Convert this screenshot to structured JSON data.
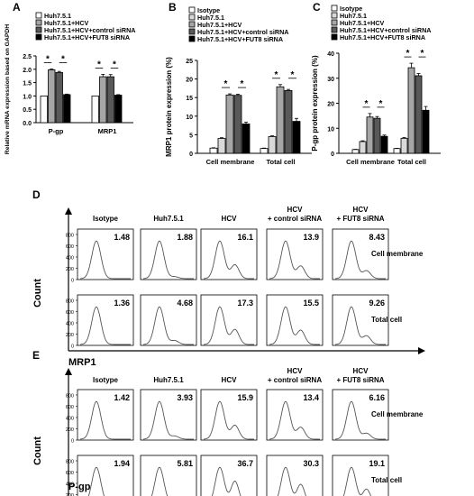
{
  "colors": {
    "white": "#ffffff",
    "light_gray": "#d9d9d9",
    "gray": "#a6a6a6",
    "dark_gray": "#595959",
    "black": "#000000",
    "curve": "#555555"
  },
  "chart_data": [
    {
      "panel": "A",
      "type": "bar",
      "title": "",
      "ylabel": "Relative mRNA expression based on GAPDH",
      "categories": [
        "P-gp",
        "MRP1"
      ],
      "ylim": [
        0,
        2.5
      ],
      "yticks": [
        "0.0",
        "0.5",
        "1.0",
        "1.5",
        "2.0",
        "2.5"
      ],
      "series": [
        {
          "name": "Huh7.5.1",
          "values": [
            1.0,
            1.0
          ],
          "errors": [
            0,
            0
          ],
          "color": "#ffffff"
        },
        {
          "name": "Huh7.5.1+HCV",
          "values": [
            1.98,
            1.72
          ],
          "errors": [
            0.03,
            0.09
          ],
          "color": "#a6a6a6"
        },
        {
          "name": "Huh7.5.1+HCV+control siRNA",
          "values": [
            1.88,
            1.72
          ],
          "errors": [
            0.04,
            0.08
          ],
          "color": "#595959"
        },
        {
          "name": "Huh7.5.1+HCV+FUT8 siRNA",
          "values": [
            1.05,
            1.03
          ],
          "errors": [
            0.02,
            0.02
          ],
          "color": "#000000"
        }
      ],
      "significance_markers": [
        "*",
        "*",
        "*",
        "*"
      ]
    },
    {
      "panel": "B",
      "type": "bar",
      "title": "",
      "ylabel": "MRP1 protein expression (%)",
      "categories": [
        "Cell membrane",
        "Total cell"
      ],
      "ylim": [
        0,
        25
      ],
      "yticks": [
        "0",
        "5",
        "10",
        "15",
        "20",
        "25"
      ],
      "series": [
        {
          "name": "Isotype",
          "values": [
            1.4,
            1.3
          ],
          "errors": [
            0.1,
            0.1
          ],
          "color": "#ffffff"
        },
        {
          "name": "Huh7.5.1",
          "values": [
            4.0,
            4.5
          ],
          "errors": [
            0.2,
            0.2
          ],
          "color": "#d9d9d9"
        },
        {
          "name": "Huh7.5.1+HCV",
          "values": [
            15.7,
            17.9
          ],
          "errors": [
            0.3,
            0.6
          ],
          "color": "#a6a6a6"
        },
        {
          "name": "Huh7.5.1+HCV+control siRNA",
          "values": [
            15.6,
            16.9
          ],
          "errors": [
            0.3,
            0.3
          ],
          "color": "#595959"
        },
        {
          "name": "Huh7.5.1+HCV+FUT8 siRNA",
          "values": [
            7.9,
            8.6
          ],
          "errors": [
            0.5,
            0.8
          ],
          "color": "#000000"
        }
      ],
      "significance_markers": [
        "*",
        "*",
        "*",
        "*"
      ]
    },
    {
      "panel": "C",
      "type": "bar",
      "title": "",
      "ylabel": "P-gp protein expression (%)",
      "categories": [
        "Cell membrane",
        "Total cell"
      ],
      "ylim": [
        0,
        40
      ],
      "yticks": [
        "0",
        "10",
        "20",
        "30",
        "40"
      ],
      "series": [
        {
          "name": "Isotype",
          "values": [
            1.5,
            1.9
          ],
          "errors": [
            0.1,
            0.1
          ],
          "color": "#ffffff"
        },
        {
          "name": "Huh7.5.1",
          "values": [
            4.7,
            6.0
          ],
          "errors": [
            0.3,
            0.3
          ],
          "color": "#d9d9d9"
        },
        {
          "name": "Huh7.5.1+HCV",
          "values": [
            14.5,
            34.2
          ],
          "errors": [
            1.4,
            1.8
          ],
          "color": "#a6a6a6"
        },
        {
          "name": "Huh7.5.1+HCV+control siRNA",
          "values": [
            14.0,
            31.0
          ],
          "errors": [
            0.7,
            0.9
          ],
          "color": "#595959"
        },
        {
          "name": "Huh7.5.1+HCV+FUT8 siRNA",
          "values": [
            6.8,
            17.2
          ],
          "errors": [
            0.5,
            1.5
          ],
          "color": "#000000"
        }
      ],
      "significance_markers": [
        "*",
        "*",
        "*",
        "*"
      ]
    },
    {
      "panel": "D",
      "type": "histogram-grid",
      "xlabel": "MRP1",
      "ylabel": "Count",
      "yticks": [
        "0",
        "200",
        "400",
        "600",
        "800"
      ],
      "columns": [
        "Isotype",
        "Huh7.5.1",
        "HCV",
        "HCV\n+ control siRNA",
        "HCV\n+ FUT8 siRNA"
      ],
      "rows": [
        {
          "label": "Cell membrane",
          "percent_labels": [
            "1.48",
            "1.88",
            "16.1",
            "13.9",
            "8.43"
          ],
          "tails": [
            0.0,
            0.05,
            0.35,
            0.32,
            0.2
          ]
        },
        {
          "label": "Total cell",
          "percent_labels": [
            "1.36",
            "4.68",
            "17.3",
            "15.5",
            "9.26"
          ],
          "tails": [
            0.0,
            0.1,
            0.38,
            0.36,
            0.22
          ]
        }
      ]
    },
    {
      "panel": "E",
      "type": "histogram-grid",
      "xlabel": "P-gp",
      "ylabel": "Count",
      "yticks": [
        "0",
        "200",
        "400",
        "600",
        "800"
      ],
      "columns": [
        "Isotype",
        "Huh7.5.1",
        "HCV",
        "HCV\n+ control siRNA",
        "HCV\n+ FUT8 siRNA"
      ],
      "rows": [
        {
          "label": "Cell membrane",
          "percent_labels": [
            "1.42",
            "3.93",
            "15.9",
            "13.4",
            "6.16"
          ],
          "tails": [
            0.0,
            0.08,
            0.35,
            0.3,
            0.15
          ]
        },
        {
          "label": "Total cell",
          "percent_labels": [
            "1.94",
            "5.81",
            "36.7",
            "30.3",
            "19.1"
          ],
          "tails": [
            0.02,
            0.1,
            0.6,
            0.52,
            0.4
          ]
        }
      ]
    }
  ]
}
